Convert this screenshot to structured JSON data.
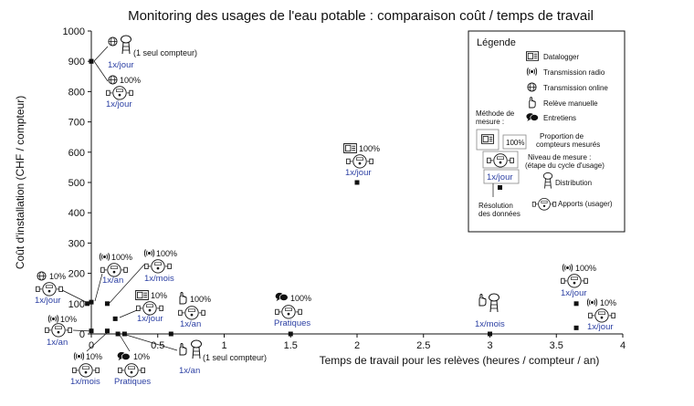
{
  "chart_data": {
    "type": "scatter",
    "title": "Monitoring des usages de l'eau potable : comparaison coût / temps de travail",
    "xlabel": "Temps de travail pour les relèves (heures / compteur / an)",
    "ylabel": "Coût d'installation (CHF / compteur)",
    "xlim": [
      0,
      4
    ],
    "ylim": [
      0,
      1000
    ],
    "x_ticks": [
      "0",
      "0.5",
      "1",
      "1.5",
      "2",
      "2.5",
      "3",
      "3.5",
      "4"
    ],
    "y_ticks": [
      "0",
      "100",
      "200",
      "300",
      "400",
      "500",
      "600",
      "700",
      "800",
      "900",
      "1000"
    ],
    "grid": false,
    "legend_position": "top-right",
    "points": [
      {
        "x": 0.0,
        "y": 900,
        "freq": "1x/jour",
        "note": "(1 seul compteur)",
        "pct": "",
        "method": "online",
        "level": "distribution"
      },
      {
        "x": 0.0,
        "y": 900,
        "freq": "1x/jour",
        "note": "",
        "pct": "100%",
        "method": "online",
        "level": "apports"
      },
      {
        "x": 2.0,
        "y": 500,
        "freq": "1x/jour",
        "note": "",
        "pct": "100%",
        "method": "datalogger",
        "level": "apports"
      },
      {
        "x": -0.03,
        "y": 100,
        "freq": "1x/jour",
        "note": "",
        "pct": "10%",
        "method": "online",
        "level": "apports"
      },
      {
        "x": 0.0,
        "y": 105,
        "freq": "1x/an",
        "note": "",
        "pct": "100%",
        "method": "radio",
        "level": "apports"
      },
      {
        "x": 0.12,
        "y": 100,
        "freq": "1x/mois",
        "note": "",
        "pct": "100%",
        "method": "radio",
        "level": "apports"
      },
      {
        "x": 0.18,
        "y": 50,
        "freq": "1x/jour",
        "note": "",
        "pct": "10%",
        "method": "datalogger",
        "level": "apports"
      },
      {
        "x": 0.0,
        "y": 10,
        "freq": "1x/an",
        "note": "",
        "pct": "10%",
        "method": "radio",
        "level": "apports"
      },
      {
        "x": 0.12,
        "y": 10,
        "freq": "1x/mois",
        "note": "",
        "pct": "10%",
        "method": "radio",
        "level": "apports"
      },
      {
        "x": 0.2,
        "y": 0,
        "freq": "Pratiques",
        "note": "",
        "pct": "10%",
        "method": "entretiens",
        "level": "apports"
      },
      {
        "x": 0.25,
        "y": 0,
        "freq": "1x/an",
        "note": "(1 seul compteur)",
        "pct": "",
        "method": "manuelle",
        "level": "distribution"
      },
      {
        "x": 0.6,
        "y": 0,
        "freq": "1x/an",
        "note": "",
        "pct": "100%",
        "method": "manuelle",
        "level": "apports"
      },
      {
        "x": 1.5,
        "y": 0,
        "freq": "Pratiques",
        "note": "",
        "pct": "100%",
        "method": "entretiens",
        "level": "apports"
      },
      {
        "x": 3.0,
        "y": 0,
        "freq": "1x/mois",
        "note": "",
        "pct": "",
        "method": "manuelle",
        "level": "distribution"
      },
      {
        "x": 3.65,
        "y": 100,
        "freq": "1x/jour",
        "note": "",
        "pct": "100%",
        "method": "radio",
        "level": "apports"
      },
      {
        "x": 3.65,
        "y": 20,
        "freq": "1x/jour",
        "note": "",
        "pct": "10%",
        "method": "radio",
        "level": "apports"
      }
    ]
  },
  "legend": {
    "title": "Légende",
    "items": [
      {
        "icon": "datalogger-icon",
        "label": "Datalogger"
      },
      {
        "icon": "radio-icon",
        "label": "Transmission radio"
      },
      {
        "icon": "globe-icon",
        "label": "Transmission online"
      },
      {
        "icon": "hand-icon",
        "label": "Relève manuelle"
      },
      {
        "icon": "speech-bubbles-icon",
        "label": "Entretiens"
      }
    ],
    "method_label_1": "Méthode de",
    "method_label_2": "mesure :",
    "pct_sample": "100%",
    "pct_label_1": "Proportion de",
    "pct_label_2": "compteurs mesurés",
    "level_label_1": "Niveau de mesure :",
    "level_label_2": "(étape du cycle d'usage)",
    "freq_sample": "1x/jour",
    "res_label_1": "Résolution",
    "res_label_2": "des données",
    "distribution_label": "Distribution",
    "apports_label": "Apports (usager)"
  }
}
